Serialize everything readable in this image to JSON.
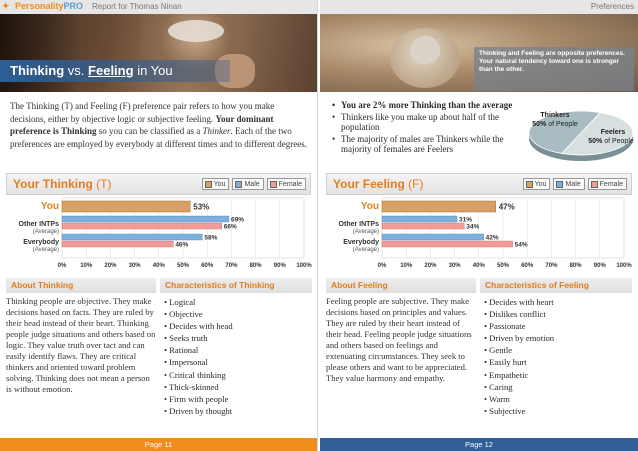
{
  "header": {
    "brand_part1": "Personality",
    "brand_part2": "PRO",
    "report_title": "Report for Thomas Ninan",
    "section": "Preferences"
  },
  "left": {
    "hero_title_part1": "Thinking",
    "hero_title_part2": "vs.",
    "hero_title_part3": "Feeling",
    "hero_title_part4": "in You",
    "intro_part1": "The Thinking (T) and Feeling (F) preference pair refers to how you make decisions, either by objective logic or subjective feeling. ",
    "intro_bold": "Your dominant preference is Thinking",
    "intro_part2": " so you can be classified as a ",
    "intro_italic": "Thinker",
    "intro_part3": ". Each of the two preferences are employed by everybody at different times and to different degrees.",
    "chart_title": "Your Thinking",
    "chart_title_letter": "(T)",
    "about_title": "About Thinking",
    "about_text": "Thinking people are objective. They make decisions based on facts. They are ruled by their head instead of their heart. Thinking people judge situations and others based on logic. They value truth over tact and can easily identify flaws. They are critical thinkers and oriented toward problem solving. Thinking does not mean a person is without emotion.",
    "char_title": "Characteristics of Thinking",
    "characteristics": [
      "Logical",
      "Objective",
      "Decides with head",
      "Seeks truth",
      "Rational",
      "Impersonal",
      "Critical thinking",
      "Thick-skinned",
      "Firm with people",
      "Driven by thought"
    ],
    "page_label": "Page 11"
  },
  "right": {
    "hero_note": "Thinking and Feeling are opposite preferences. Your natural tendency toward one is stronger than the other.",
    "bullets": [
      "You are 2% more Thinking than the average",
      "Thinkers like you make up about half of the population",
      "The majority of males are Thinkers while the majority of females are Feelers"
    ],
    "pie_thinkers_label": "Thinkers",
    "pie_thinkers_pct": "50%",
    "pie_feelers_label": "Feelers",
    "pie_feelers_pct": "50%",
    "pie_of_people": "of People",
    "chart_title": "Your Feeling",
    "chart_title_letter": "(F)",
    "about_title": "About Feeling",
    "about_text": "Feeling people are subjective. They make decisions based on principles and values. They are ruled by their heart instead of their head. Feeling people judge situations and others based on feelings and extenuating circumstances. They seek to please others and want to be appreciated. They value harmony and empathy.",
    "char_title": "Characteristics of Feeling",
    "characteristics": [
      "Decides with heart",
      "Dislikes conflict",
      "Passionate",
      "Driven by emotion",
      "Gentle",
      "Easily hurt",
      "Empathetic",
      "Caring",
      "Warm",
      "Subjective"
    ],
    "page_label": "Page 12"
  },
  "legend": {
    "you": "You",
    "male": "Male",
    "female": "Female"
  },
  "colors": {
    "orange": "#f08c1e",
    "blue_header": "#2f5f96",
    "you_bar": "#d9a066",
    "male_bar": "#7fb0dc",
    "female_bar": "#f29c9a"
  },
  "chart_data": [
    {
      "type": "bar",
      "title": "Your Thinking (T)",
      "categories": [
        "You",
        "Other INTPs (Average)",
        "Everybody (Average)"
      ],
      "series": [
        {
          "name": "You",
          "values": [
            53,
            null,
            null
          ]
        },
        {
          "name": "Male",
          "values": [
            null,
            69,
            58
          ]
        },
        {
          "name": "Female",
          "values": [
            null,
            66,
            46
          ]
        }
      ],
      "xlim": [
        0,
        100
      ],
      "ticks": [
        "0%",
        "10%",
        "20%",
        "30%",
        "40%",
        "50%",
        "60%",
        "70%",
        "80%",
        "90%",
        "100%"
      ],
      "legend": "top-right"
    },
    {
      "type": "bar",
      "title": "Your Feeling (F)",
      "categories": [
        "You",
        "Other INTPs (Average)",
        "Everybody (Average)"
      ],
      "series": [
        {
          "name": "You",
          "values": [
            47,
            null,
            null
          ]
        },
        {
          "name": "Male",
          "values": [
            null,
            31,
            42
          ]
        },
        {
          "name": "Female",
          "values": [
            null,
            34,
            54
          ]
        }
      ],
      "xlim": [
        0,
        100
      ],
      "ticks": [
        "0%",
        "10%",
        "20%",
        "30%",
        "40%",
        "50%",
        "60%",
        "70%",
        "80%",
        "90%",
        "100%"
      ],
      "legend": "top-right"
    },
    {
      "type": "pie",
      "categories": [
        "Thinkers",
        "Feelers"
      ],
      "values": [
        50,
        50
      ]
    }
  ]
}
